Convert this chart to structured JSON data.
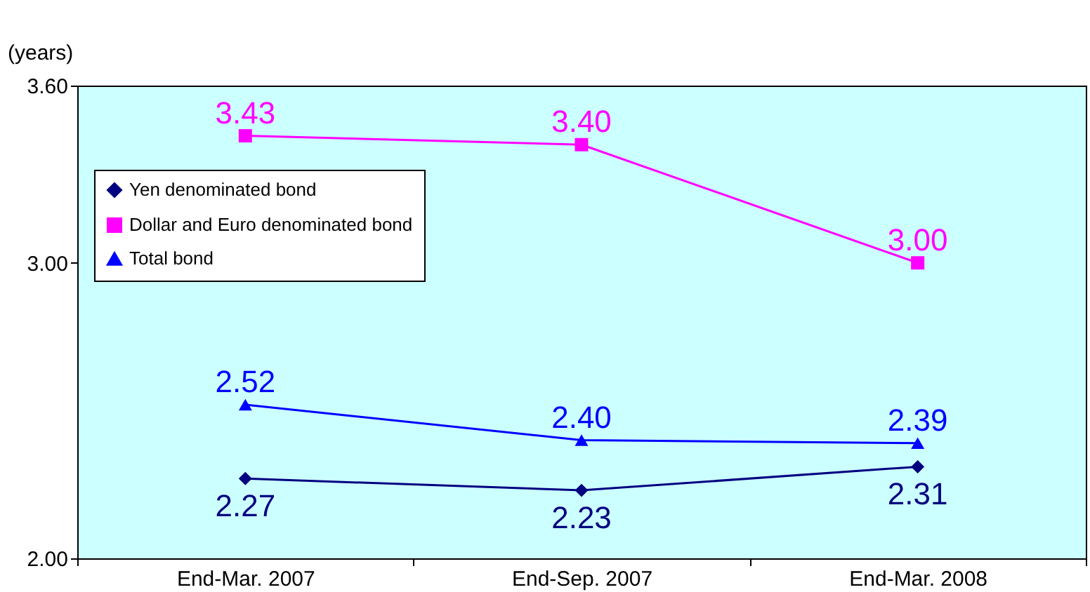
{
  "chart_data": {
    "type": "line",
    "ylabel": "(years)",
    "categories": [
      "End-Mar. 2007",
      "End-Sep. 2007",
      "End-Mar. 2008"
    ],
    "series": [
      {
        "name": "Yen denominated bond",
        "color": "#000080",
        "marker": "diamond",
        "values": [
          2.27,
          2.23,
          2.31
        ],
        "value_labels": [
          "2.27",
          "2.23",
          "2.31"
        ]
      },
      {
        "name": "Dollar and Euro denominated bond",
        "color": "#ff00ff",
        "marker": "square",
        "values": [
          3.43,
          3.4,
          3.0
        ],
        "value_labels": [
          "3.43",
          "3.40",
          "3.00"
        ]
      },
      {
        "name": "Total bond",
        "color": "#0000ff",
        "marker": "triangle",
        "values": [
          2.52,
          2.4,
          2.39
        ],
        "value_labels": [
          "2.52",
          "2.40",
          "2.39"
        ]
      }
    ],
    "ylim": [
      2.0,
      3.6
    ],
    "yticks": [
      {
        "value": 2.0,
        "label": "2.00"
      },
      {
        "value": 3.0,
        "label": "3.00"
      },
      {
        "value": 3.6,
        "label": "3.60"
      }
    ],
    "grid": false,
    "legend": "top left"
  }
}
